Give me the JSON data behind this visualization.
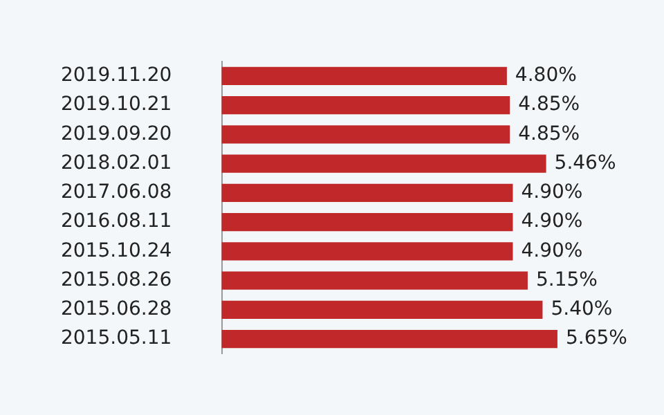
{
  "chart_data": {
    "type": "bar",
    "orientation": "horizontal",
    "categories": [
      "2019.11.20",
      "2019.10.21",
      "2019.09.20",
      "2018.02.01",
      "2017.06.08",
      "2016.08.11",
      "2015.10.24",
      "2015.08.26",
      "2015.06.28",
      "2015.05.11"
    ],
    "values": [
      4.8,
      4.85,
      4.85,
      5.46,
      4.9,
      4.9,
      4.9,
      5.15,
      5.4,
      5.65
    ],
    "value_labels": [
      "4.80%",
      "4.85%",
      "4.85%",
      "5.46%",
      "4.90%",
      "4.90%",
      "4.90%",
      "5.15%",
      "5.40%",
      "5.65%"
    ],
    "color": "#c0282a",
    "tick_labels": "y",
    "grid": false,
    "legend": false
  }
}
